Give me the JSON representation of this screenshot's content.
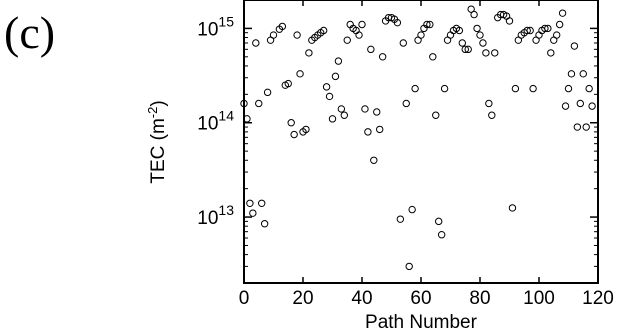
{
  "panel_label": "(c)",
  "chart_data": {
    "type": "scatter",
    "title": "",
    "xlabel": "Path Number",
    "ylabel": "TEC (m",
    "ylabel_exponent": "-2",
    "ylabel_close": ")",
    "xlim": [
      0,
      120
    ],
    "ylim": [
      2000000000000.0,
      2000000000000000.0
    ],
    "yscale": "log",
    "grid": false,
    "marker": "open-circle",
    "x_ticks": [
      0,
      20,
      40,
      60,
      80,
      100,
      120
    ],
    "x_tick_labels": [
      "0",
      "20",
      "40",
      "60",
      "80",
      "100",
      "120"
    ],
    "y_ticks": [
      10000000000000.0,
      100000000000000.0,
      1000000000000000.0
    ],
    "y_tick_base": [
      "10",
      "10",
      "10"
    ],
    "y_tick_exp": [
      "13",
      "14",
      "15"
    ],
    "points": [
      {
        "x": 0,
        "y": 160000000000000.0
      },
      {
        "x": 1,
        "y": 110000000000000.0
      },
      {
        "x": 2,
        "y": 14000000000000.0
      },
      {
        "x": 3,
        "y": 11000000000000.0
      },
      {
        "x": 4,
        "y": 700000000000000.0
      },
      {
        "x": 5,
        "y": 160000000000000.0
      },
      {
        "x": 6,
        "y": 14000000000000.0
      },
      {
        "x": 7,
        "y": 8500000000000.0
      },
      {
        "x": 8,
        "y": 210000000000000.0
      },
      {
        "x": 9,
        "y": 750000000000000.0
      },
      {
        "x": 10,
        "y": 850000000000000.0
      },
      {
        "x": 12,
        "y": 980000000000000.0
      },
      {
        "x": 13,
        "y": 1050000000000000.0
      },
      {
        "x": 14,
        "y": 250000000000000.0
      },
      {
        "x": 15,
        "y": 260000000000000.0
      },
      {
        "x": 16,
        "y": 100000000000000.0
      },
      {
        "x": 17,
        "y": 75000000000000.0
      },
      {
        "x": 18,
        "y": 850000000000000.0
      },
      {
        "x": 19,
        "y": 330000000000000.0
      },
      {
        "x": 20,
        "y": 80000000000000.0
      },
      {
        "x": 21,
        "y": 85000000000000.0
      },
      {
        "x": 22,
        "y": 550000000000000.0
      },
      {
        "x": 23,
        "y": 750000000000000.0
      },
      {
        "x": 24,
        "y": 800000000000000.0
      },
      {
        "x": 25,
        "y": 850000000000000.0
      },
      {
        "x": 26,
        "y": 900000000000000.0
      },
      {
        "x": 27,
        "y": 950000000000000.0
      },
      {
        "x": 28,
        "y": 240000000000000.0
      },
      {
        "x": 29,
        "y": 190000000000000.0
      },
      {
        "x": 30,
        "y": 110000000000000.0
      },
      {
        "x": 31,
        "y": 310000000000000.0
      },
      {
        "x": 32,
        "y": 450000000000000.0
      },
      {
        "x": 33,
        "y": 140000000000000.0
      },
      {
        "x": 34,
        "y": 120000000000000.0
      },
      {
        "x": 35,
        "y": 750000000000000.0
      },
      {
        "x": 36,
        "y": 1100000000000000.0
      },
      {
        "x": 37,
        "y": 1000000000000000.0
      },
      {
        "x": 38,
        "y": 950000000000000.0
      },
      {
        "x": 39,
        "y": 850000000000000.0
      },
      {
        "x": 40,
        "y": 1100000000000000.0
      },
      {
        "x": 41,
        "y": 140000000000000.0
      },
      {
        "x": 42,
        "y": 80000000000000.0
      },
      {
        "x": 43,
        "y": 600000000000000.0
      },
      {
        "x": 44,
        "y": 40000000000000.0
      },
      {
        "x": 45,
        "y": 130000000000000.0
      },
      {
        "x": 46,
        "y": 85000000000000.0
      },
      {
        "x": 47,
        "y": 500000000000000.0
      },
      {
        "x": 48,
        "y": 1200000000000000.0
      },
      {
        "x": 49,
        "y": 1300000000000000.0
      },
      {
        "x": 50,
        "y": 1300000000000000.0
      },
      {
        "x": 51,
        "y": 1250000000000000.0
      },
      {
        "x": 52,
        "y": 1150000000000000.0
      },
      {
        "x": 53,
        "y": 9500000000000.0
      },
      {
        "x": 54,
        "y": 700000000000000.0
      },
      {
        "x": 55,
        "y": 160000000000000.0
      },
      {
        "x": 56,
        "y": 3000000000000.0
      },
      {
        "x": 57,
        "y": 12000000000000.0
      },
      {
        "x": 58,
        "y": 230000000000000.0
      },
      {
        "x": 59,
        "y": 750000000000000.0
      },
      {
        "x": 60,
        "y": 850000000000000.0
      },
      {
        "x": 61,
        "y": 1000000000000000.0
      },
      {
        "x": 62,
        "y": 1100000000000000.0
      },
      {
        "x": 63,
        "y": 1100000000000000.0
      },
      {
        "x": 64,
        "y": 500000000000000.0
      },
      {
        "x": 65,
        "y": 120000000000000.0
      },
      {
        "x": 66,
        "y": 9000000000000.0
      },
      {
        "x": 67,
        "y": 6500000000000.0
      },
      {
        "x": 68,
        "y": 230000000000000.0
      },
      {
        "x": 69,
        "y": 750000000000000.0
      },
      {
        "x": 70,
        "y": 850000000000000.0
      },
      {
        "x": 71,
        "y": 950000000000000.0
      },
      {
        "x": 72,
        "y": 1000000000000000.0
      },
      {
        "x": 73,
        "y": 950000000000000.0
      },
      {
        "x": 74,
        "y": 700000000000000.0
      },
      {
        "x": 75,
        "y": 600000000000000.0
      },
      {
        "x": 76,
        "y": 600000000000000.0
      },
      {
        "x": 77,
        "y": 1600000000000000.0
      },
      {
        "x": 78,
        "y": 1400000000000000.0
      },
      {
        "x": 79,
        "y": 1000000000000000.0
      },
      {
        "x": 80,
        "y": 850000000000000.0
      },
      {
        "x": 81,
        "y": 700000000000000.0
      },
      {
        "x": 82,
        "y": 550000000000000.0
      },
      {
        "x": 83,
        "y": 160000000000000.0
      },
      {
        "x": 84,
        "y": 120000000000000.0
      },
      {
        "x": 85,
        "y": 550000000000000.0
      },
      {
        "x": 86,
        "y": 1300000000000000.0
      },
      {
        "x": 87,
        "y": 1400000000000000.0
      },
      {
        "x": 88,
        "y": 1400000000000000.0
      },
      {
        "x": 89,
        "y": 1350000000000000.0
      },
      {
        "x": 90,
        "y": 1200000000000000.0
      },
      {
        "x": 91,
        "y": 12500000000000.0
      },
      {
        "x": 92,
        "y": 230000000000000.0
      },
      {
        "x": 93,
        "y": 750000000000000.0
      },
      {
        "x": 94,
        "y": 850000000000000.0
      },
      {
        "x": 95,
        "y": 900000000000000.0
      },
      {
        "x": 96,
        "y": 950000000000000.0
      },
      {
        "x": 97,
        "y": 950000000000000.0
      },
      {
        "x": 98,
        "y": 230000000000000.0
      },
      {
        "x": 99,
        "y": 750000000000000.0
      },
      {
        "x": 100,
        "y": 850000000000000.0
      },
      {
        "x": 101,
        "y": 950000000000000.0
      },
      {
        "x": 102,
        "y": 1000000000000000.0
      },
      {
        "x": 103,
        "y": 1000000000000000.0
      },
      {
        "x": 104,
        "y": 550000000000000.0
      },
      {
        "x": 105,
        "y": 750000000000000.0
      },
      {
        "x": 106,
        "y": 850000000000000.0
      },
      {
        "x": 107,
        "y": 1100000000000000.0
      },
      {
        "x": 108,
        "y": 1450000000000000.0
      },
      {
        "x": 109,
        "y": 150000000000000.0
      },
      {
        "x": 110,
        "y": 230000000000000.0
      },
      {
        "x": 111,
        "y": 330000000000000.0
      },
      {
        "x": 112,
        "y": 650000000000000.0
      },
      {
        "x": 113,
        "y": 90000000000000.0
      },
      {
        "x": 114,
        "y": 160000000000000.0
      },
      {
        "x": 115,
        "y": 330000000000000.0
      },
      {
        "x": 116,
        "y": 90000000000000.0
      },
      {
        "x": 117,
        "y": 230000000000000.0
      },
      {
        "x": 118,
        "y": 150000000000000.0
      }
    ]
  }
}
